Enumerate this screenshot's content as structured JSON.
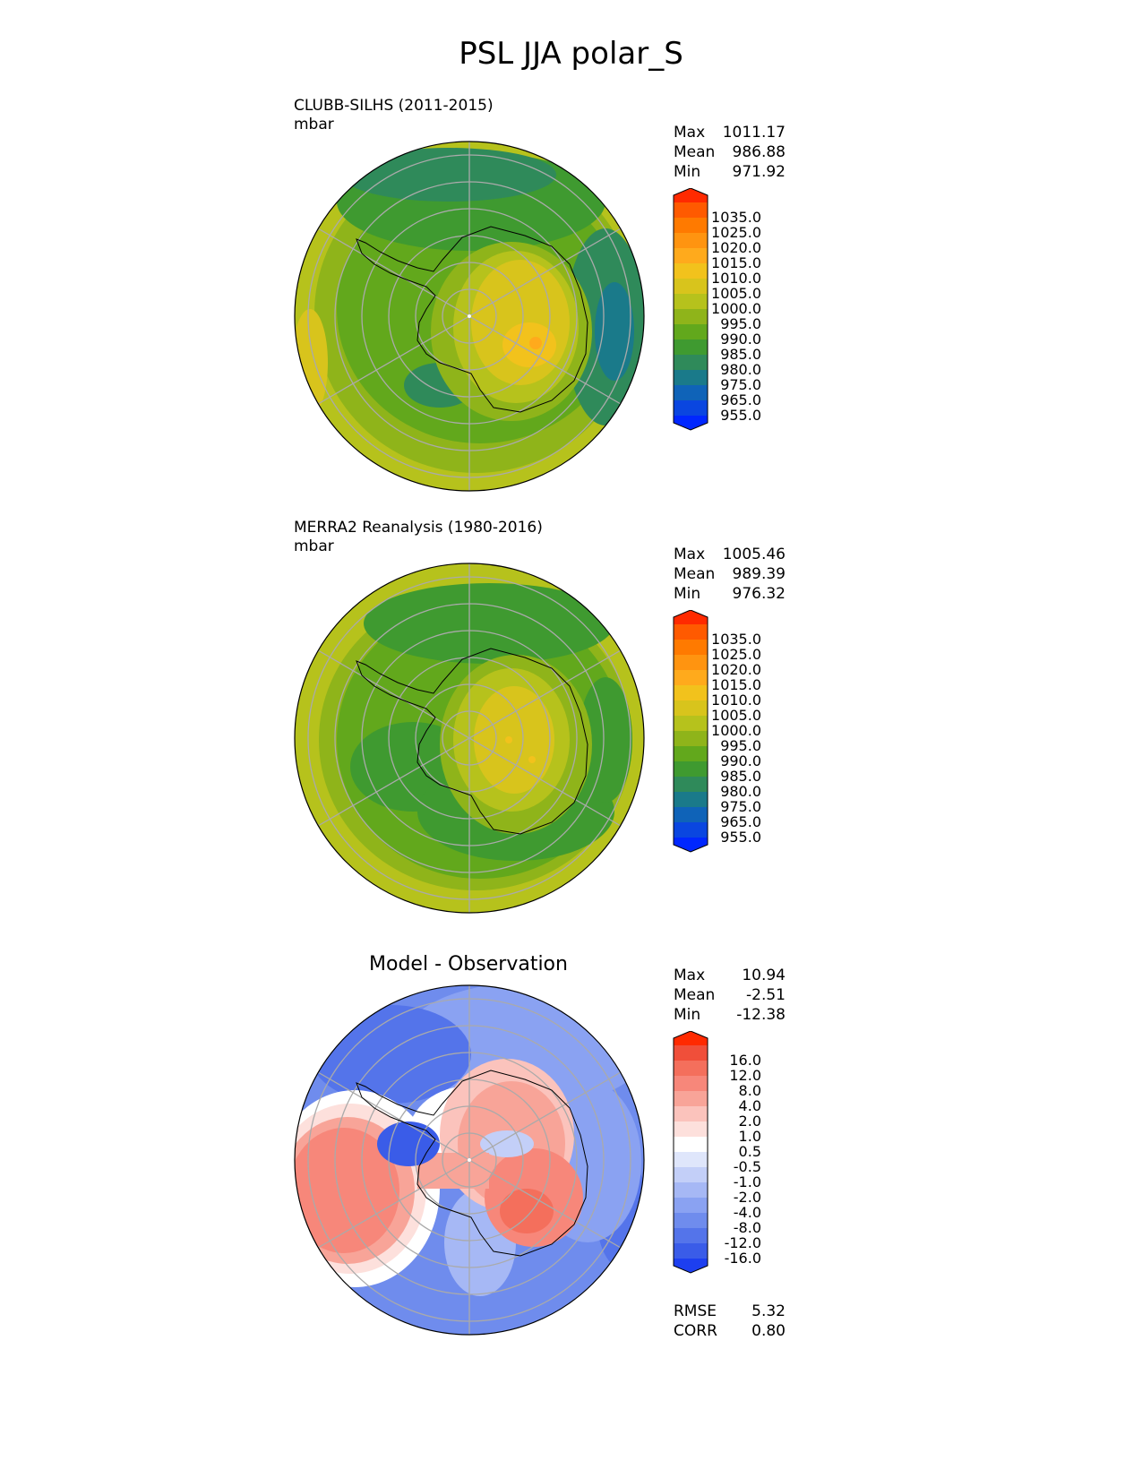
{
  "title": "PSL JJA polar_S",
  "panels": [
    {
      "id": "model",
      "label": "CLUBB-SILHS (2011-2015)",
      "units": "mbar",
      "stats": [
        {
          "name": "Max",
          "value": "1011.17"
        },
        {
          "name": "Mean",
          "value": "986.88"
        },
        {
          "name": "Min",
          "value": "971.92"
        }
      ]
    },
    {
      "id": "obs",
      "label": "MERRA2 Reanalysis (1980-2016)",
      "units": "mbar",
      "stats": [
        {
          "name": "Max",
          "value": "1005.46"
        },
        {
          "name": "Mean",
          "value": "989.39"
        },
        {
          "name": "Min",
          "value": "976.32"
        }
      ]
    },
    {
      "id": "diff",
      "title": "Model - Observation",
      "stats": [
        {
          "name": "Max",
          "value": "10.94"
        },
        {
          "name": "Mean",
          "value": "-2.51"
        },
        {
          "name": "Min",
          "value": "-12.38"
        }
      ],
      "metrics": [
        {
          "name": "RMSE",
          "value": "5.32"
        },
        {
          "name": "CORR",
          "value": "0.80"
        }
      ]
    }
  ],
  "chart_data": [
    {
      "type": "heatmap",
      "projection": "south polar stereographic",
      "variable": "PSL",
      "season": "JJA",
      "colorbar": {
        "ticks": [
          "1035.0",
          "1025.0",
          "1020.0",
          "1015.0",
          "1010.0",
          "1005.0",
          "1000.0",
          "995.0",
          "990.0",
          "985.0",
          "980.0",
          "975.0",
          "965.0",
          "955.0"
        ],
        "colors": [
          "#ff2a00",
          "#ff5a00",
          "#ff7a00",
          "#ff9410",
          "#ffaa1c",
          "#f2c21c",
          "#d8c41c",
          "#b6c21c",
          "#8fb41a",
          "#62a81c",
          "#3f9a30",
          "#2f8a5a",
          "#1a7a8a",
          "#0f63b8",
          "#0a46e0",
          "#0027ff"
        ]
      },
      "stats": {
        "max": 1011.17,
        "mean": 986.88,
        "min": 971.92
      }
    },
    {
      "type": "heatmap",
      "projection": "south polar stereographic",
      "variable": "PSL",
      "season": "JJA",
      "colorbar": {
        "ticks": [
          "1035.0",
          "1025.0",
          "1020.0",
          "1015.0",
          "1010.0",
          "1005.0",
          "1000.0",
          "995.0",
          "990.0",
          "985.0",
          "980.0",
          "975.0",
          "965.0",
          "955.0"
        ],
        "colors": [
          "#ff2a00",
          "#ff5a00",
          "#ff7a00",
          "#ff9410",
          "#ffaa1c",
          "#f2c21c",
          "#d8c41c",
          "#b6c21c",
          "#8fb41a",
          "#62a81c",
          "#3f9a30",
          "#2f8a5a",
          "#1a7a8a",
          "#0f63b8",
          "#0a46e0",
          "#0027ff"
        ]
      },
      "stats": {
        "max": 1005.46,
        "mean": 989.39,
        "min": 976.32
      }
    },
    {
      "type": "heatmap",
      "projection": "south polar stereographic",
      "variable": "PSL difference",
      "colorbar": {
        "ticks": [
          "16.0",
          "12.0",
          "8.0",
          "4.0",
          "2.0",
          "1.0",
          "0.5",
          "-0.5",
          "-1.0",
          "-2.0",
          "-4.0",
          "-8.0",
          "-12.0",
          "-16.0"
        ],
        "colors": [
          "#ff2a00",
          "#f04f3a",
          "#f46f5c",
          "#f7877a",
          "#f8a498",
          "#fbc3bc",
          "#fde0dc",
          "#ffffff",
          "#dfe6fb",
          "#c3cff8",
          "#a6b8f5",
          "#8aa2f2",
          "#6f8ced",
          "#5474ea",
          "#3a5ce8",
          "#1d3ff0"
        ]
      },
      "stats": {
        "max": 10.94,
        "mean": -2.51,
        "min": -12.38,
        "rmse": 5.32,
        "corr": 0.8
      }
    }
  ]
}
